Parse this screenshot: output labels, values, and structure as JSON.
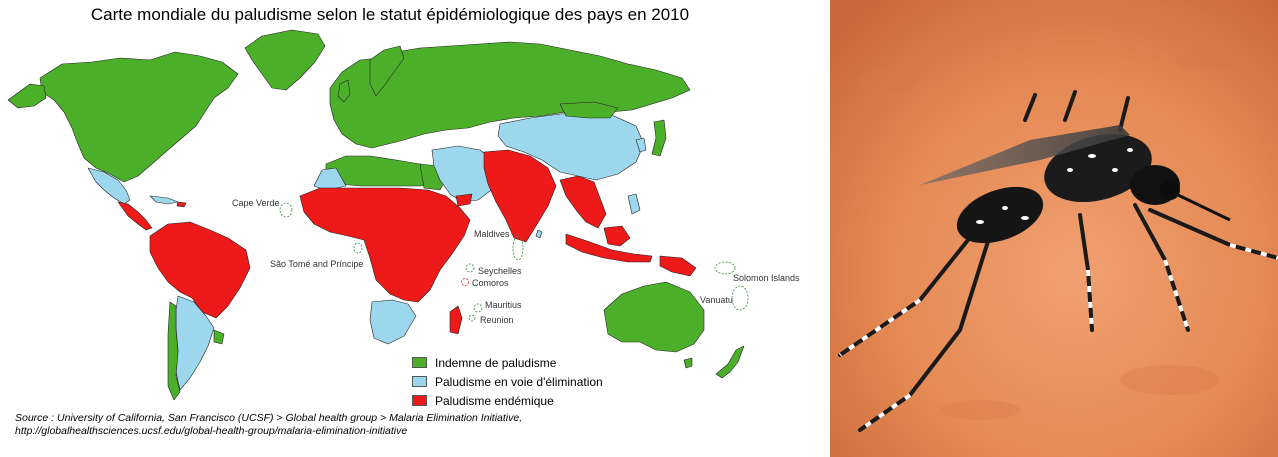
{
  "title": "Carte mondiale du paludisme selon le statut épidémiologique des pays en 2010",
  "colors": {
    "free": "#4caf2a",
    "elimination": "#9dd7ee",
    "endemic": "#ee1a1a",
    "border": "#222222"
  },
  "legend": [
    {
      "label": "Indemne de paludisme",
      "color": "#4caf2a"
    },
    {
      "label": "Paludisme en voie d'élimination",
      "color": "#9dd7ee"
    },
    {
      "label": "Paludisme endémique",
      "color": "#ee1a1a"
    }
  ],
  "islands": {
    "cape_verde": "Cape Verde",
    "sao_tome": "São Tomé and Príncipe",
    "maldives": "Maldives",
    "seychelles": "Seychelles",
    "comoros": "Comoros",
    "mauritius": "Mauritius",
    "reunion": "Reunion",
    "solomon": "Solomon Islands",
    "vanuatu": "Vanuatu"
  },
  "source": {
    "line1": "Source : University of California, San Francisco (UCSF) > Global health group > Malaria Elimination Initiative,",
    "line2": "http://globalhealthsciences.ucsf.edu/global-health-group/malaria-elimination-initiative"
  },
  "photo": {
    "subject": "mosquito-on-skin"
  }
}
